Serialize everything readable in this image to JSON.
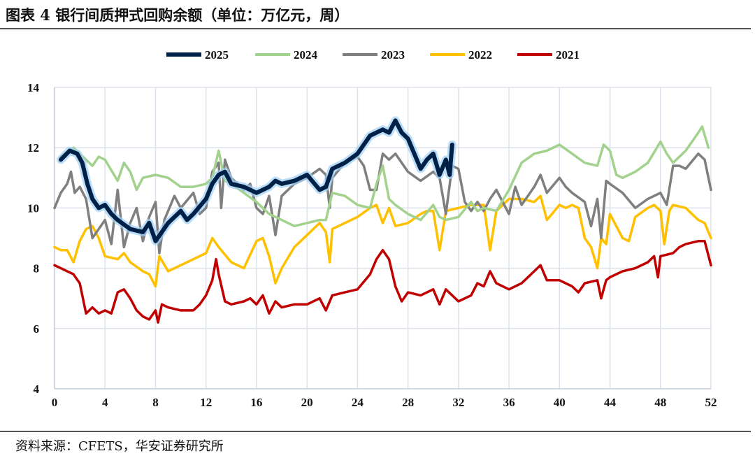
{
  "title": "图表 4  银行间质押式回购余额（单位：万亿元，周）",
  "source": "资料来源：CFETS，华安证券研究所",
  "chart_data": {
    "type": "line",
    "title": "图表 4  银行间质押式回购余额（单位：万亿元，周）",
    "xlabel": "",
    "ylabel": "",
    "xlim": [
      0,
      52
    ],
    "ylim": [
      4,
      14
    ],
    "xticks": [
      0,
      4,
      8,
      12,
      16,
      20,
      24,
      28,
      32,
      36,
      40,
      44,
      48,
      52
    ],
    "yticks": [
      4,
      6,
      8,
      10,
      12,
      14
    ],
    "grid": true,
    "legend": "top",
    "series": [
      {
        "name": "2025",
        "color": "#002147",
        "x": [
          0.5,
          1.2,
          1.8,
          2.2,
          2.6,
          3,
          3.5,
          4,
          4.5,
          5,
          6,
          7,
          7.5,
          8,
          8.5,
          9,
          10,
          10.5,
          11,
          12,
          12.5,
          13,
          13.5,
          14,
          15,
          16,
          16.5,
          17,
          17.5,
          18,
          19,
          20,
          21,
          21.5,
          22,
          23,
          24,
          25,
          26,
          26.5,
          27,
          27.5,
          28,
          29,
          29.5,
          30,
          30.5,
          31,
          31.3,
          31.5
        ],
        "y": [
          11.6,
          11.9,
          11.8,
          11.5,
          10.8,
          10.3,
          10.0,
          10.1,
          9.8,
          9.6,
          9.3,
          9.2,
          9.5,
          8.9,
          9.2,
          9.5,
          9.9,
          9.6,
          9.8,
          10.3,
          10.8,
          11.1,
          11.2,
          10.8,
          10.7,
          10.5,
          10.6,
          10.7,
          10.9,
          10.8,
          10.9,
          11.1,
          10.6,
          10.7,
          11.3,
          11.5,
          11.8,
          12.4,
          12.6,
          12.5,
          12.9,
          12.5,
          12.3,
          11.3,
          11.6,
          11.8,
          11.1,
          11.6,
          11.1,
          12.1
        ]
      },
      {
        "name": "2024",
        "color": "#A3D18E",
        "x": [
          0.5,
          1.5,
          2,
          3,
          3.5,
          4,
          5,
          5.5,
          6,
          6.5,
          7,
          8,
          9,
          10,
          11,
          12,
          12.5,
          13,
          13.5,
          14,
          15,
          16,
          17,
          18,
          19,
          20,
          21,
          21.5,
          22,
          23,
          24,
          25,
          25.5,
          26,
          26.5,
          27,
          28,
          29,
          30,
          30.5,
          31,
          32,
          33,
          33.5,
          34,
          35,
          36,
          37,
          38,
          39,
          40,
          41,
          42,
          43,
          43.5,
          44,
          44.5,
          45,
          46,
          47,
          48,
          48.5,
          49,
          50,
          51,
          51.3,
          51.8
        ],
        "y": [
          11.7,
          12.0,
          11.8,
          11.4,
          11.7,
          11.6,
          10.9,
          11.5,
          11.2,
          10.6,
          11.0,
          11.1,
          11.0,
          10.7,
          10.7,
          10.8,
          11.0,
          11.9,
          10.9,
          10.8,
          10.5,
          10.2,
          9.8,
          9.6,
          9.4,
          9.5,
          9.6,
          9.6,
          10.5,
          10.4,
          10.1,
          10.0,
          10.8,
          11.4,
          10.3,
          10.1,
          9.8,
          9.6,
          10.1,
          9.7,
          9.6,
          9.7,
          10.2,
          9.9,
          10.0,
          9.9,
          10.6,
          11.5,
          11.8,
          11.9,
          12.1,
          11.8,
          11.5,
          11.4,
          12.1,
          11.9,
          11.1,
          11.0,
          11.2,
          11.5,
          12.2,
          11.8,
          11.5,
          11.9,
          12.5,
          12.7,
          12.0
        ]
      },
      {
        "name": "2023",
        "color": "#7F7F7F",
        "x": [
          0,
          0.5,
          1,
          1.3,
          1.6,
          2,
          2.5,
          3,
          3.5,
          4,
          4.5,
          5,
          5.5,
          6,
          6.5,
          7,
          7.5,
          8,
          8.3,
          8.7,
          9.5,
          10,
          11,
          11.5,
          12,
          12.5,
          13,
          13.2,
          13.5,
          14,
          15,
          15.5,
          16,
          16.5,
          17,
          17.5,
          18,
          19,
          19.5,
          20,
          21,
          21.5,
          21.8,
          22,
          23,
          24,
          24.5,
          25,
          25.5,
          26,
          26.5,
          27,
          28,
          29,
          30,
          30.5,
          31,
          31.5,
          32,
          32.5,
          33,
          33.5,
          34,
          34.5,
          35,
          36,
          36.5,
          37,
          38,
          38.5,
          39,
          40,
          40.5,
          41,
          42,
          42.5,
          43,
          43.3,
          43.7,
          44,
          45,
          46,
          47,
          48,
          48.5,
          49,
          49.5,
          50,
          51,
          51.5,
          52
        ],
        "y": [
          10.0,
          10.5,
          10.8,
          11.2,
          10.5,
          10.7,
          10.3,
          9.0,
          9.3,
          9.6,
          8.8,
          10.6,
          8.7,
          9.5,
          10.0,
          8.9,
          9.7,
          10.2,
          8.5,
          9.6,
          10.4,
          10.0,
          10.5,
          9.8,
          10.0,
          11.2,
          11.5,
          10.0,
          11.6,
          11.0,
          10.6,
          10.8,
          10.0,
          9.8,
          10.4,
          9.1,
          10.4,
          10.8,
          10.9,
          11.0,
          11.3,
          11.1,
          10.0,
          11.0,
          11.5,
          11.7,
          11.4,
          10.6,
          10.6,
          11.8,
          11.6,
          11.8,
          11.2,
          10.9,
          11.2,
          11.0,
          9.8,
          11.4,
          11.3,
          10.2,
          9.9,
          10.2,
          9.9,
          10.3,
          10.6,
          9.8,
          10.7,
          10.1,
          10.7,
          11.1,
          10.5,
          11.0,
          10.7,
          10.5,
          10.2,
          9.4,
          10.3,
          9.0,
          10.9,
          10.8,
          10.5,
          10.0,
          10.3,
          10.5,
          10.1,
          11.4,
          11.4,
          11.3,
          11.8,
          11.6,
          10.6
        ]
      },
      {
        "name": "2022",
        "color": "#FFC000",
        "x": [
          0,
          0.5,
          1,
          1.5,
          2,
          2.5,
          3,
          3.5,
          4,
          5,
          5.5,
          6,
          7,
          7.5,
          8,
          8.3,
          9,
          10,
          11,
          12,
          12.5,
          13,
          14,
          15,
          16,
          16.5,
          17,
          17.5,
          18,
          19,
          20,
          21,
          21.5,
          21.8,
          22,
          23,
          24,
          25,
          25.5,
          26,
          26.5,
          27,
          28,
          29,
          29.5,
          30,
          30.5,
          31,
          32,
          33,
          34,
          34.5,
          35,
          36,
          37,
          38,
          38.5,
          39,
          40,
          40.5,
          41,
          41.5,
          42,
          42.5,
          43,
          43.3,
          43.7,
          44,
          45,
          45.5,
          46,
          47,
          47.5,
          48,
          48.3,
          48.7,
          49,
          50,
          51,
          51.5,
          52
        ],
        "y": [
          8.7,
          8.6,
          8.6,
          8.2,
          8.9,
          9.3,
          9.4,
          9.0,
          8.4,
          8.3,
          8.5,
          8.2,
          7.9,
          7.8,
          7.4,
          8.4,
          7.9,
          8.1,
          8.3,
          8.5,
          9.0,
          8.7,
          8.2,
          8.0,
          8.9,
          9.0,
          8.4,
          7.5,
          8.0,
          8.7,
          9.1,
          9.5,
          9.2,
          8.2,
          9.3,
          9.5,
          9.7,
          10.0,
          10.1,
          9.5,
          10.0,
          9.4,
          9.5,
          9.8,
          9.9,
          9.9,
          8.6,
          9.9,
          10.0,
          10.1,
          10.1,
          8.6,
          9.9,
          10.3,
          10.3,
          10.2,
          10.4,
          9.6,
          10.1,
          10.0,
          10.1,
          10.0,
          9.0,
          8.7,
          8.0,
          9.0,
          8.8,
          9.8,
          9.0,
          8.9,
          9.7,
          10.0,
          10.1,
          9.9,
          8.8,
          9.9,
          10.1,
          10.0,
          9.6,
          9.5,
          9.0
        ]
      },
      {
        "name": "2021",
        "color": "#C00000",
        "x": [
          0,
          0.5,
          1,
          1.5,
          2,
          2.5,
          3,
          3.5,
          4,
          4.5,
          5,
          5.5,
          6,
          6.5,
          7,
          7.5,
          8,
          8.2,
          8.5,
          9,
          10,
          10.5,
          11,
          11.5,
          12,
          12.5,
          12.8,
          13,
          13.5,
          14,
          15,
          15.5,
          16,
          16.5,
          17,
          17.5,
          18,
          19,
          20,
          21,
          21.5,
          22,
          23,
          24,
          25,
          25.5,
          26,
          26.5,
          27,
          27.5,
          28,
          29,
          30,
          30.5,
          31,
          31.5,
          32,
          33,
          33.5,
          34,
          34.5,
          35,
          36,
          37,
          38,
          38.5,
          39,
          40,
          41,
          41.5,
          42,
          43,
          43.3,
          43.7,
          44,
          45,
          46,
          47,
          47.5,
          47.8,
          48,
          49,
          49.5,
          50,
          51,
          51.5,
          52
        ],
        "y": [
          8.1,
          8.0,
          7.9,
          7.8,
          7.5,
          6.5,
          6.7,
          6.5,
          6.6,
          6.5,
          7.2,
          7.3,
          7.0,
          6.6,
          6.4,
          6.3,
          6.6,
          6.2,
          6.8,
          6.7,
          6.6,
          6.6,
          6.6,
          6.8,
          7.1,
          7.6,
          8.3,
          7.8,
          6.9,
          6.8,
          6.9,
          7.0,
          6.8,
          7.1,
          6.5,
          6.9,
          6.7,
          6.8,
          6.8,
          7.0,
          6.6,
          7.1,
          7.2,
          7.3,
          7.8,
          8.3,
          8.6,
          8.3,
          7.4,
          6.9,
          7.2,
          7.1,
          7.3,
          6.8,
          7.3,
          7.1,
          6.9,
          7.1,
          7.5,
          7.4,
          7.9,
          7.5,
          7.3,
          7.5,
          7.9,
          8.1,
          7.6,
          7.6,
          7.4,
          7.2,
          7.5,
          7.6,
          7.0,
          7.6,
          7.7,
          7.9,
          8.0,
          8.2,
          8.4,
          7.7,
          8.4,
          8.5,
          8.7,
          8.8,
          8.9,
          8.9,
          8.1
        ]
      }
    ]
  }
}
